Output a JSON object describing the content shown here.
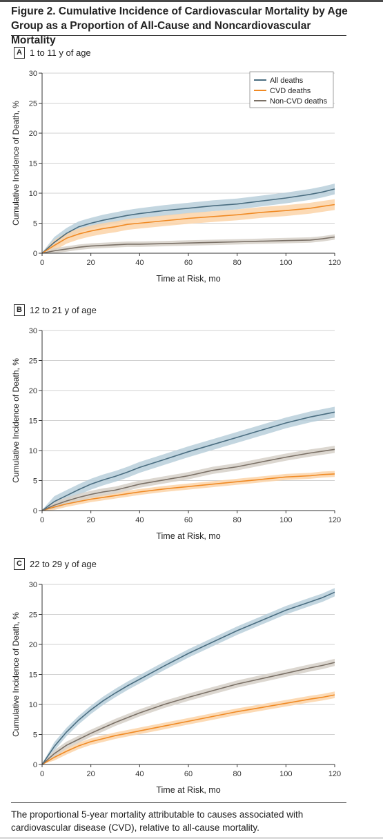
{
  "figure": {
    "title": "Figure 2. Cumulative Incidence of Cardiovascular Mortality by Age Group as a Proportion of All-Cause and Noncardiovascular Mortality",
    "caption": "The proportional 5-year mortality attributable to causes associated with cardiovascular disease (CVD), relative to all-cause mortality."
  },
  "colors": {
    "all": "#4a6d80",
    "cvd": "#f08a24",
    "noncvd": "#7a7066",
    "all_band": "#b9cfdb",
    "cvd_band": "#fbd3a8",
    "noncvd_band": "#d6d0c8",
    "grid": "#d0d0d0"
  },
  "chart_data": [
    {
      "type": "line",
      "panel": "A",
      "panel_label": "1 to 11 y of age",
      "xlabel": "Time at Risk, mo",
      "ylabel": "Cumulative Incidence of Death, %",
      "xlim": [
        0,
        120
      ],
      "ylim": [
        0,
        30
      ],
      "xticks": [
        0,
        20,
        40,
        60,
        80,
        100,
        120
      ],
      "yticks": [
        0,
        5,
        10,
        15,
        20,
        25,
        30
      ],
      "grid": "horizontal",
      "legend_position": "top-right",
      "x": [
        0,
        5,
        10,
        15,
        20,
        25,
        30,
        35,
        40,
        50,
        60,
        70,
        80,
        90,
        100,
        110,
        115,
        120
      ],
      "series": [
        {
          "name": "All deaths",
          "key": "all",
          "values": [
            0,
            1.8,
            3.3,
            4.4,
            5.0,
            5.5,
            5.9,
            6.3,
            6.6,
            7.1,
            7.5,
            7.9,
            8.2,
            8.7,
            9.2,
            9.8,
            10.2,
            10.7
          ],
          "band": 0.9
        },
        {
          "name": "CVD deaths",
          "key": "cvd",
          "values": [
            0,
            1.3,
            2.5,
            3.2,
            3.7,
            4.1,
            4.4,
            4.8,
            5.0,
            5.4,
            5.8,
            6.1,
            6.4,
            6.8,
            7.1,
            7.5,
            7.8,
            8.1
          ],
          "band": 0.9
        },
        {
          "name": "Non-CVD deaths",
          "key": "noncvd",
          "values": [
            0,
            0.4,
            0.7,
            1.0,
            1.2,
            1.3,
            1.4,
            1.5,
            1.5,
            1.6,
            1.7,
            1.8,
            1.9,
            2.0,
            2.1,
            2.2,
            2.4,
            2.7
          ],
          "band": 0.45
        }
      ]
    },
    {
      "type": "line",
      "panel": "B",
      "panel_label": "12 to 21 y of age",
      "xlabel": "Time at Risk, mo",
      "ylabel": "Cumulative Incidence of Death, %",
      "xlim": [
        0,
        120
      ],
      "ylim": [
        0,
        30
      ],
      "xticks": [
        0,
        20,
        40,
        60,
        80,
        100,
        120
      ],
      "yticks": [
        0,
        5,
        10,
        15,
        20,
        25,
        30
      ],
      "grid": "horizontal",
      "x": [
        0,
        5,
        10,
        15,
        20,
        25,
        30,
        35,
        40,
        50,
        60,
        70,
        80,
        90,
        100,
        110,
        115,
        120
      ],
      "series": [
        {
          "name": "All deaths",
          "key": "all",
          "values": [
            0,
            1.5,
            2.5,
            3.5,
            4.4,
            5.1,
            5.7,
            6.4,
            7.2,
            8.5,
            9.8,
            11.0,
            12.2,
            13.4,
            14.6,
            15.6,
            16.0,
            16.4
          ],
          "band": 0.9
        },
        {
          "name": "CVD deaths",
          "key": "cvd",
          "values": [
            0,
            0.6,
            1.1,
            1.5,
            1.9,
            2.2,
            2.5,
            2.8,
            3.1,
            3.6,
            4.0,
            4.4,
            4.8,
            5.2,
            5.6,
            5.8,
            6.0,
            6.1
          ],
          "band": 0.5
        },
        {
          "name": "Non-CVD deaths",
          "key": "noncvd",
          "values": [
            0,
            0.9,
            1.6,
            2.2,
            2.7,
            3.1,
            3.4,
            3.9,
            4.4,
            5.1,
            5.8,
            6.7,
            7.3,
            8.1,
            8.9,
            9.6,
            9.9,
            10.2
          ],
          "band": 0.6
        }
      ]
    },
    {
      "type": "line",
      "panel": "C",
      "panel_label": "22 to 29 y of age",
      "xlabel": "Time at Risk, mo",
      "ylabel": "Cumulative Incidence of Death, %",
      "xlim": [
        0,
        120
      ],
      "ylim": [
        0,
        30
      ],
      "xticks": [
        0,
        20,
        40,
        60,
        80,
        100,
        120
      ],
      "yticks": [
        0,
        5,
        10,
        15,
        20,
        25,
        30
      ],
      "grid": "horizontal",
      "x": [
        0,
        5,
        10,
        15,
        20,
        25,
        30,
        35,
        40,
        50,
        60,
        70,
        80,
        90,
        100,
        110,
        115,
        120
      ],
      "series": [
        {
          "name": "All deaths",
          "key": "all",
          "values": [
            0,
            3.0,
            5.4,
            7.4,
            9.1,
            10.6,
            11.9,
            13.1,
            14.2,
            16.4,
            18.5,
            20.4,
            22.3,
            24.0,
            25.7,
            27.1,
            27.8,
            28.7
          ],
          "band": 0.7
        },
        {
          "name": "CVD deaths",
          "key": "cvd",
          "values": [
            0,
            1.2,
            2.2,
            3.1,
            3.8,
            4.3,
            4.8,
            5.2,
            5.6,
            6.4,
            7.2,
            8.0,
            8.8,
            9.5,
            10.2,
            10.9,
            11.2,
            11.6
          ],
          "band": 0.55
        },
        {
          "name": "Non-CVD deaths",
          "key": "noncvd",
          "values": [
            0,
            1.8,
            3.2,
            4.2,
            5.2,
            6.1,
            7.0,
            7.8,
            8.6,
            10.0,
            11.2,
            12.3,
            13.4,
            14.3,
            15.2,
            16.1,
            16.5,
            17.0
          ],
          "band": 0.6
        }
      ]
    }
  ]
}
